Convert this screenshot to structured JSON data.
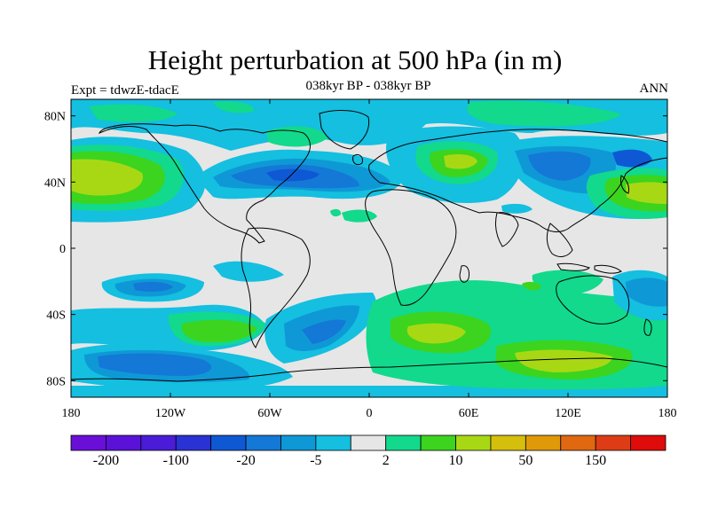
{
  "title": "Height perturbation at 500 hPa (in m)",
  "subtitle": "038kyr BP - 038kyr BP",
  "left_label": "Expt = tdwzE-tdacE",
  "right_label": "ANN",
  "axes": {
    "lat_ticks": [
      {
        "lat": 80,
        "label": "80N"
      },
      {
        "lat": 40,
        "label": "40N"
      },
      {
        "lat": 0,
        "label": "0"
      },
      {
        "lat": -40,
        "label": "40S"
      },
      {
        "lat": -80,
        "label": "80S"
      }
    ],
    "lon_ticks": [
      {
        "lon": -180,
        "label": "180"
      },
      {
        "lon": -120,
        "label": "120W"
      },
      {
        "lon": -60,
        "label": "60W"
      },
      {
        "lon": 0,
        "label": "0"
      },
      {
        "lon": 60,
        "label": "60E"
      },
      {
        "lon": 120,
        "label": "120E"
      },
      {
        "lon": 180,
        "label": "180"
      }
    ],
    "lon_range": [
      -180,
      180
    ],
    "lat_range": [
      -90,
      90
    ]
  },
  "colorbar": {
    "colors": [
      "#6a0fd8",
      "#5a12d8",
      "#4a1cd8",
      "#2a32d4",
      "#0f58d4",
      "#1478d6",
      "#0f98d6",
      "#14bfe0",
      "#e6e6e6",
      "#12d98c",
      "#3cd41e",
      "#a8d814",
      "#d4bf0c",
      "#e09a08",
      "#e06810",
      "#de3c16",
      "#e00b0b"
    ],
    "labels": [
      {
        "boundary": 1,
        "text": "-200"
      },
      {
        "boundary": 3,
        "text": "-100"
      },
      {
        "boundary": 5,
        "text": "-20"
      },
      {
        "boundary": 7,
        "text": "-5"
      },
      {
        "boundary": 9,
        "text": "2"
      },
      {
        "boundary": 11,
        "text": "10"
      },
      {
        "boundary": 13,
        "text": "50"
      },
      {
        "boundary": 15,
        "text": "150"
      }
    ]
  },
  "field_colors": {
    "background": "#e6e6e6",
    "light_blue": "#14bfe0",
    "mid_blue": "#0f98d6",
    "blue": "#1478d6",
    "dark_blue": "#0f58d4",
    "light_green": "#12d98c",
    "green": "#3cd41e",
    "yellow_green": "#a8d814",
    "coast": "#000000"
  }
}
